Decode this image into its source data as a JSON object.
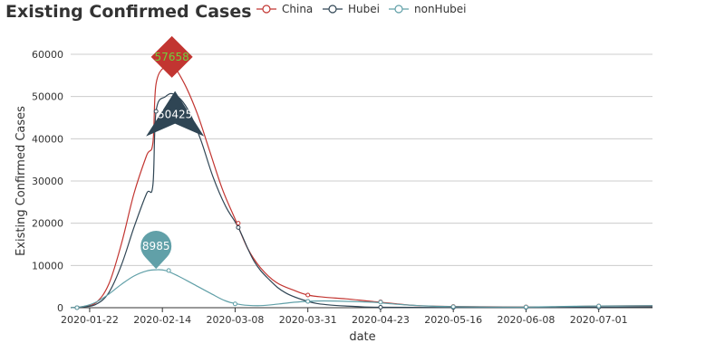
{
  "chart_data": {
    "type": "line",
    "title": "Existing Confirmed Cases",
    "xlabel": "date",
    "ylabel": "Existing Confirmed Cases",
    "x_range": [
      "2020-01-16",
      "2020-07-18"
    ],
    "ylim": [
      0,
      60000
    ],
    "y_ticks": [
      0,
      10000,
      20000,
      30000,
      40000,
      50000,
      60000
    ],
    "x_ticks": [
      "2020-01-22",
      "2020-02-14",
      "2020-03-08",
      "2020-03-31",
      "2020-04-23",
      "2020-05-16",
      "2020-06-08",
      "2020-07-01"
    ],
    "grid": "horizontal",
    "legend_position": "top",
    "series": [
      {
        "name": "China",
        "color": "#c23531",
        "points": [
          [
            "2020-01-16",
            0
          ],
          [
            "2020-01-20",
            300
          ],
          [
            "2020-01-24",
            1200
          ],
          [
            "2020-01-28",
            5500
          ],
          [
            "2020-02-01",
            15000
          ],
          [
            "2020-02-05",
            27000
          ],
          [
            "2020-02-09",
            36000
          ],
          [
            "2020-02-11",
            39000
          ],
          [
            "2020-02-12",
            53000
          ],
          [
            "2020-02-15",
            57300
          ],
          [
            "2020-02-17",
            57658
          ],
          [
            "2020-02-21",
            53000
          ],
          [
            "2020-02-25",
            46000
          ],
          [
            "2020-02-29",
            37000
          ],
          [
            "2020-03-04",
            28000
          ],
          [
            "2020-03-08",
            21000
          ],
          [
            "2020-03-12",
            14000
          ],
          [
            "2020-03-16",
            9500
          ],
          [
            "2020-03-21",
            6000
          ],
          [
            "2020-03-27",
            4000
          ],
          [
            "2020-03-31",
            3000
          ],
          [
            "2020-04-05",
            2500
          ],
          [
            "2020-04-12",
            2100
          ],
          [
            "2020-04-20",
            1500
          ],
          [
            "2020-04-27",
            1000
          ],
          [
            "2020-05-05",
            500
          ],
          [
            "2020-05-16",
            300
          ],
          [
            "2020-06-01",
            200
          ],
          [
            "2020-06-15",
            200
          ],
          [
            "2020-07-01",
            400
          ],
          [
            "2020-07-18",
            500
          ]
        ],
        "markers": [
          [
            "2020-01-18",
            0
          ],
          [
            "2020-02-17",
            57658
          ],
          [
            "2020-03-09",
            20000
          ],
          [
            "2020-03-31",
            3000
          ],
          [
            "2020-04-23",
            1400
          ],
          [
            "2020-05-16",
            300
          ],
          [
            "2020-06-08",
            200
          ],
          [
            "2020-07-01",
            400
          ]
        ]
      },
      {
        "name": "Hubei",
        "color": "#2f4554",
        "points": [
          [
            "2020-01-16",
            0
          ],
          [
            "2020-01-20",
            200
          ],
          [
            "2020-01-24",
            800
          ],
          [
            "2020-01-28",
            3500
          ],
          [
            "2020-02-01",
            10000
          ],
          [
            "2020-02-05",
            19000
          ],
          [
            "2020-02-09",
            27000
          ],
          [
            "2020-02-11",
            29000
          ],
          [
            "2020-02-12",
            46500
          ],
          [
            "2020-02-15",
            50000
          ],
          [
            "2020-02-18",
            50425
          ],
          [
            "2020-02-22",
            47000
          ],
          [
            "2020-02-26",
            40000
          ],
          [
            "2020-03-01",
            31000
          ],
          [
            "2020-03-05",
            24000
          ],
          [
            "2020-03-09",
            19000
          ],
          [
            "2020-03-14",
            11000
          ],
          [
            "2020-03-19",
            6500
          ],
          [
            "2020-03-24",
            3500
          ],
          [
            "2020-03-31",
            1500
          ],
          [
            "2020-04-06",
            700
          ],
          [
            "2020-04-15",
            300
          ],
          [
            "2020-04-23",
            100
          ],
          [
            "2020-05-16",
            50
          ],
          [
            "2020-06-08",
            50
          ],
          [
            "2020-07-01",
            100
          ],
          [
            "2020-07-18",
            200
          ]
        ],
        "markers": [
          [
            "2020-01-18",
            0
          ],
          [
            "2020-02-12",
            46500
          ],
          [
            "2020-03-09",
            19000
          ],
          [
            "2020-03-31",
            1500
          ],
          [
            "2020-04-23",
            100
          ],
          [
            "2020-05-16",
            50
          ],
          [
            "2020-06-08",
            50
          ],
          [
            "2020-07-01",
            100
          ]
        ]
      },
      {
        "name": "nonHubei",
        "color": "#61a0a8",
        "points": [
          [
            "2020-01-16",
            0
          ],
          [
            "2020-01-20",
            300
          ],
          [
            "2020-01-24",
            1300
          ],
          [
            "2020-01-28",
            3200
          ],
          [
            "2020-02-01",
            5500
          ],
          [
            "2020-02-05",
            7500
          ],
          [
            "2020-02-09",
            8700
          ],
          [
            "2020-02-12",
            8985
          ],
          [
            "2020-02-15",
            8800
          ],
          [
            "2020-02-19",
            7500
          ],
          [
            "2020-02-24",
            5500
          ],
          [
            "2020-02-29",
            3500
          ],
          [
            "2020-03-05",
            1600
          ],
          [
            "2020-03-10",
            700
          ],
          [
            "2020-03-16",
            500
          ],
          [
            "2020-03-22",
            900
          ],
          [
            "2020-03-27",
            1300
          ],
          [
            "2020-03-31",
            1500
          ],
          [
            "2020-04-05",
            1600
          ],
          [
            "2020-04-12",
            1500
          ],
          [
            "2020-04-20",
            1300
          ],
          [
            "2020-04-27",
            900
          ],
          [
            "2020-05-05",
            500
          ],
          [
            "2020-05-16",
            250
          ],
          [
            "2020-06-08",
            150
          ],
          [
            "2020-06-20",
            300
          ],
          [
            "2020-07-01",
            400
          ],
          [
            "2020-07-18",
            500
          ]
        ],
        "markers": [
          [
            "2020-01-18",
            0
          ],
          [
            "2020-02-16",
            8800
          ],
          [
            "2020-03-08",
            900
          ],
          [
            "2020-03-31",
            1500
          ],
          [
            "2020-04-23",
            1300
          ],
          [
            "2020-05-16",
            250
          ],
          [
            "2020-06-08",
            150
          ],
          [
            "2020-07-01",
            400
          ]
        ]
      }
    ],
    "annotations": [
      {
        "series": "China",
        "label": "57658",
        "x": "2020-02-17",
        "y": 57658,
        "shape": "diamond",
        "color": "#c23531",
        "text_color": "#6fd03c"
      },
      {
        "series": "Hubei",
        "label": "50425",
        "x": "2020-02-18",
        "y": 50425,
        "shape": "arrow",
        "color": "#2f4554",
        "text_color": "#ffffff"
      },
      {
        "series": "nonHubei",
        "label": "8985",
        "x": "2020-02-12",
        "y": 8985,
        "shape": "pin",
        "color": "#61a0a8",
        "text_color": "#ffffff"
      }
    ]
  }
}
